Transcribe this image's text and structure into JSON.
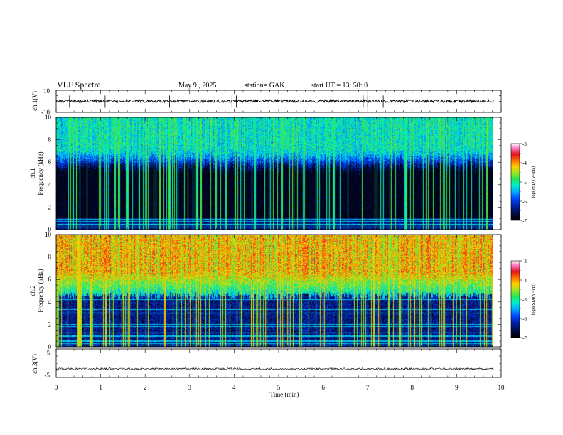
{
  "header": {
    "title": "VLF  Spectra",
    "date": "May 9   , 2025",
    "station": "station= GAK",
    "start": "start  UT  =    13: 50: 0"
  },
  "colors": {
    "scale": [
      "#000000",
      "#000a3c",
      "#001e9c",
      "#0044ff",
      "#00b4ff",
      "#00f0c8",
      "#28e650",
      "#9ee61e",
      "#ffd000",
      "#ff6e00",
      "#e1141e",
      "#ff78be",
      "#ffffff"
    ],
    "trace": "#000000",
    "frame": "#000000"
  },
  "chart_data": [
    {
      "type": "line",
      "name": "ch1-waveform",
      "ylabel": "ch.1(V)",
      "ylim": [
        -10,
        10
      ],
      "yticks": [
        "10",
        "-10"
      ],
      "x_unit": "min",
      "xlim": [
        0,
        10
      ],
      "data_end_min": 9.83,
      "baseline_v": 0.2,
      "noise_amplitude_v": 1.2,
      "spikes_min": [
        0.3,
        1.1,
        2.55,
        3.95,
        4.05,
        6.9,
        7.0,
        7.35
      ]
    },
    {
      "type": "heatmap",
      "name": "ch1-spectrogram",
      "ylabel": "Frequency  (kHz)",
      "channel_label": "ch.1",
      "y_unit": "kHz",
      "ylim": [
        0,
        10
      ],
      "yticks": [
        "0",
        "2",
        "4",
        "6",
        "8",
        "10"
      ],
      "xlim": [
        0,
        10
      ],
      "data_end_min": 9.83,
      "colorbar": {
        "label": "log(PSD)(V²/Hz)",
        "range": [
          -7,
          -3
        ],
        "ticks": [
          "-3",
          "-4",
          "-5",
          "-6",
          "-7"
        ]
      },
      "features": {
        "quiet_band_khz": [
          1.0,
          6.0
        ],
        "noise_band_khz": [
          6.0,
          10.0
        ],
        "noise_band_log_psd": -5.2,
        "quiet_band_log_psd": -7.0,
        "line_frequencies_khz": [
          0.2,
          0.45,
          0.75,
          0.9
        ],
        "impulse_count": 150
      }
    },
    {
      "type": "heatmap",
      "name": "ch2-spectrogram",
      "ylabel": "Frequency  (kHz)",
      "channel_label": "ch.2",
      "y_unit": "kHz",
      "ylim": [
        0,
        10
      ],
      "yticks": [
        "0",
        "2",
        "4",
        "6",
        "8",
        "10"
      ],
      "xlim": [
        0,
        10
      ],
      "data_end_min": 9.83,
      "colorbar": {
        "label": "log(PSD)(V²/Hz)",
        "range": [
          -7,
          -3
        ],
        "ticks": [
          "-3",
          "-4",
          "-5",
          "-6",
          "-7"
        ]
      },
      "features": {
        "noise_band_khz": [
          4.5,
          10.0
        ],
        "noise_band_log_psd": -4.2,
        "quiet_band_khz": [
          0.5,
          4.5
        ],
        "quiet_band_log_psd": -6.4,
        "line_frequencies_khz": [
          0.15,
          0.3,
          0.5,
          0.95,
          1.25,
          1.8,
          2.0,
          3.0,
          3.3,
          4.2
        ],
        "impulse_count": 150
      }
    },
    {
      "type": "line",
      "name": "ch3-waveform",
      "ylabel": "ch.3(V)",
      "ylim": [
        -5,
        5
      ],
      "yticks": [
        "5",
        "-5"
      ],
      "xlabel": "Time  (min)",
      "xlim": [
        0,
        10
      ],
      "xticks": [
        "0",
        "1",
        "2",
        "3",
        "4",
        "5",
        "6",
        "7",
        "8",
        "9",
        "10"
      ],
      "data_end_min": 9.83,
      "baseline_v": -2.0,
      "band_amplitude_v": 0.35
    }
  ]
}
